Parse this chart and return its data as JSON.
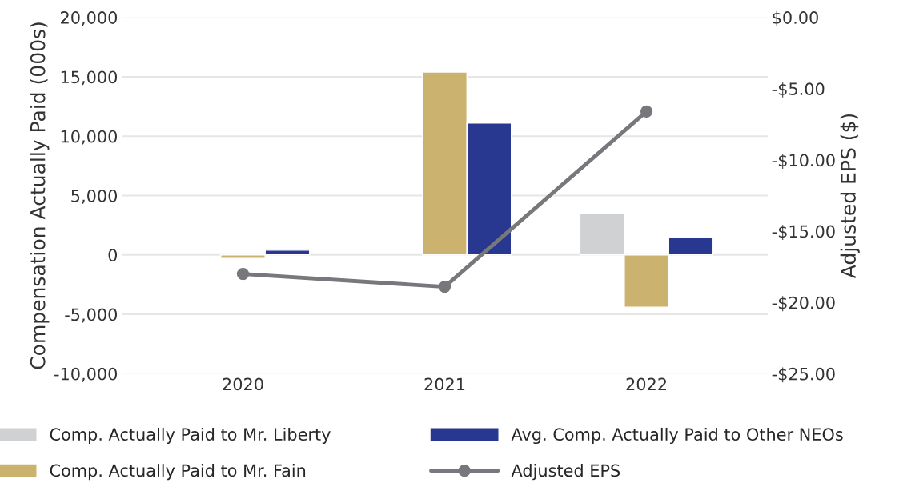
{
  "chart_data": {
    "type": "bar",
    "categories": [
      "2020",
      "2021",
      "2022"
    ],
    "ylabel": "Compensation Actually Paid (000s)",
    "y2label": "Adjusted EPS ($)",
    "ylim": [
      -10000,
      20000
    ],
    "yticks": [
      {
        "value": -10000,
        "label": "-10,000"
      },
      {
        "value": -5000,
        "label": "-5,000"
      },
      0,
      {
        "value": 5000,
        "label": "5,000"
      },
      {
        "value": 10000,
        "label": "10,000"
      },
      {
        "value": 15000,
        "label": "15,000"
      },
      {
        "value": 20000,
        "label": "20,000"
      }
    ],
    "y2lim": [
      -25,
      0
    ],
    "y2ticks": [
      {
        "value": -25,
        "label": "-$25.00"
      },
      {
        "value": -20,
        "label": "-$20.00"
      },
      {
        "value": -15,
        "label": "-$15.00"
      },
      {
        "value": -10,
        "label": "-$10.00"
      },
      {
        "value": -5,
        "label": "-$5.00"
      },
      {
        "value": 0,
        "label": "$0.00"
      }
    ],
    "grid": "y",
    "legend": "bottom",
    "series": [
      {
        "name": "Comp. Actually Paid to Mr. Liberty",
        "color": "#d0d1d3",
        "values": [
          null,
          null,
          3500
        ]
      },
      {
        "name": "Comp. Actually Paid to Mr. Fain",
        "color": "#cbb36f",
        "values": [
          -300,
          15400,
          -4400
        ]
      },
      {
        "name": "Avg. Comp. Actually Paid to Other NEOs",
        "color": "#283891",
        "values": [
          400,
          11100,
          1500
        ]
      },
      {
        "name": "Adjusted EPS",
        "type": "line",
        "axis": "y2",
        "color": "#77787b",
        "marker": "circle",
        "line_style": "solid",
        "values": [
          -18.0,
          -18.9,
          -6.6
        ]
      }
    ]
  }
}
